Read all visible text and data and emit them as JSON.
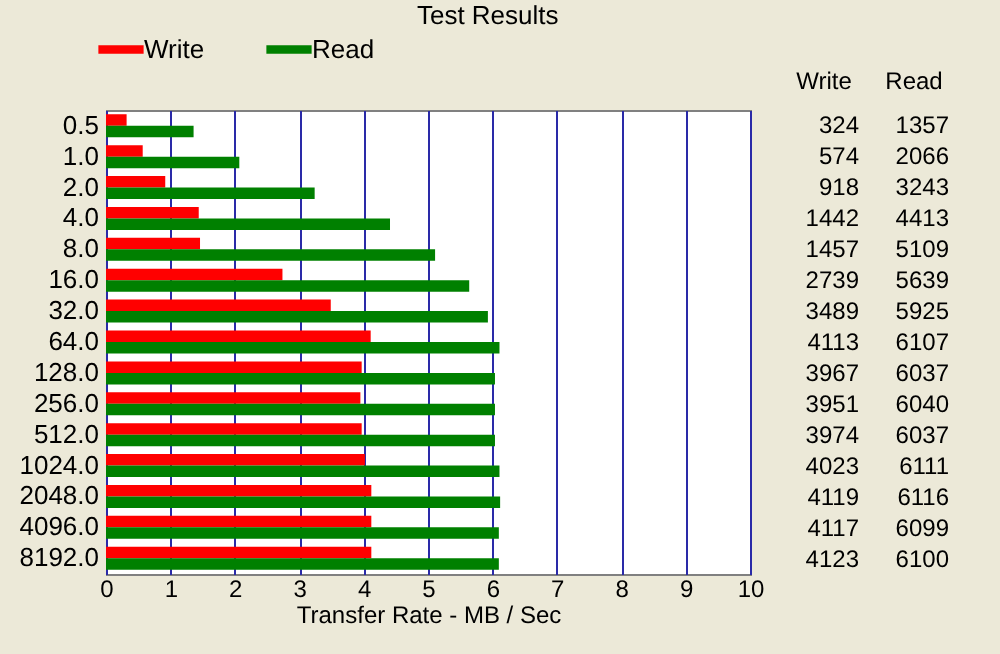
{
  "chart_data": {
    "type": "bar",
    "orientation": "horizontal",
    "title": "Test Results",
    "xlabel": "Transfer Rate - MB / Sec",
    "categories": [
      "0.5",
      "1.0",
      "2.0",
      "4.0",
      "8.0",
      "16.0",
      "32.0",
      "64.0",
      "128.0",
      "256.0",
      "512.0",
      "1024.0",
      "2048.0",
      "4096.0",
      "8192.0"
    ],
    "series": [
      {
        "name": "Write",
        "color": "#ff0000",
        "values": [
          0.32,
          0.57,
          0.92,
          1.44,
          1.46,
          2.74,
          3.49,
          4.11,
          3.97,
          3.95,
          3.97,
          4.02,
          4.12,
          4.12,
          4.12
        ]
      },
      {
        "name": "Read",
        "color": "#008000",
        "values": [
          1.36,
          2.07,
          3.24,
          4.41,
          5.11,
          5.64,
          5.93,
          6.11,
          6.04,
          6.04,
          6.04,
          6.11,
          6.12,
          6.1,
          6.1
        ]
      }
    ],
    "annotations": [
      "Write",
      "Read",
      "324",
      "1357",
      "574",
      "2066",
      "918",
      "3243",
      "1442",
      "4413",
      "1457",
      "5109",
      "2739",
      "5639",
      "3489",
      "5925",
      "4113",
      "6107",
      "3967",
      "6037",
      "3951",
      "6040",
      "3974",
      "6037",
      "4023",
      "6111",
      "4119",
      "6116",
      "4117",
      "6099",
      "4123",
      "6100"
    ],
    "xlim": [
      0,
      10
    ],
    "xticks": [
      0,
      1,
      2,
      3,
      4,
      5,
      6,
      7,
      8,
      9,
      10
    ],
    "grid": "x",
    "legend": "top"
  }
}
